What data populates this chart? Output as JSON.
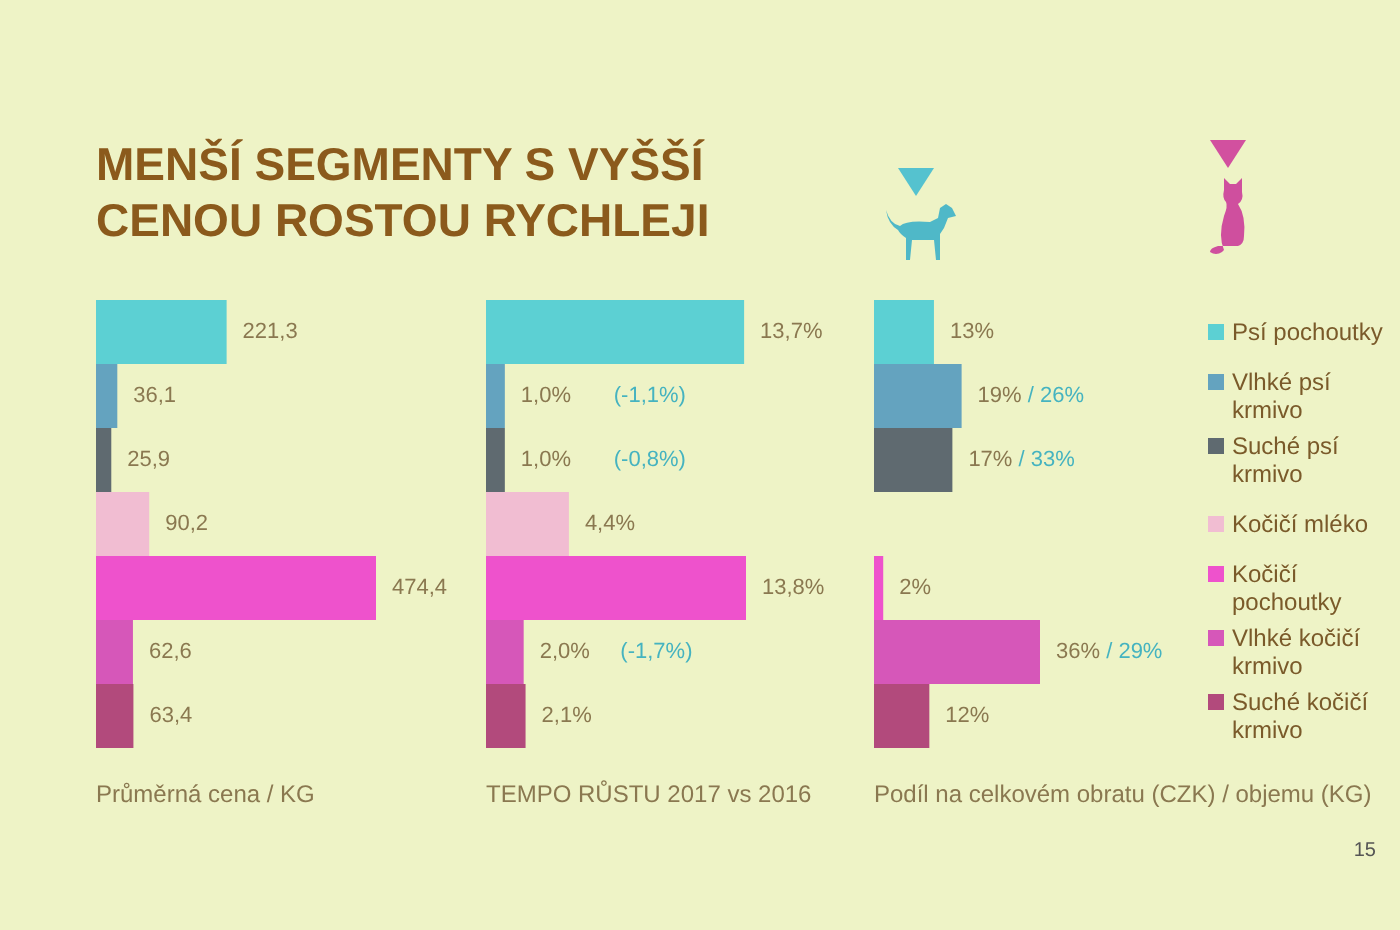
{
  "chart_data": [
    {
      "type": "bar",
      "orientation": "horizontal",
      "title": "MENŠÍ SEGMENTY S VYŠŠÍ CENOU ROSTOU RYCHLEJI",
      "xlabel": "Průměrná cena / KG",
      "categories": [
        null,
        null,
        null,
        null,
        null,
        null,
        null
      ],
      "values": [
        221.3,
        36.1,
        25.9,
        90.2,
        474.4,
        62.6,
        63.4
      ],
      "colors": [
        "#5cd0d3",
        "#64a3bf",
        "#5f6a70",
        "#f1bdd2",
        "#ee52cc",
        "#d657b9",
        "#b24a7c"
      ],
      "value_labels": [
        "221,3",
        "36,1",
        "25,9",
        "90,2",
        "474,4",
        "62,6",
        "63,4"
      ]
    },
    {
      "type": "bar",
      "orientation": "horizontal",
      "xlabel": "TEMPO RŮSTU 2017 vs 2016",
      "categories": [
        null,
        null,
        null,
        null,
        null,
        null,
        null
      ],
      "values": [
        13.7,
        1.0,
        1.0,
        4.4,
        13.8,
        2.0,
        2.1
      ],
      "colors": [
        "#5cd0d3",
        "#64a3bf",
        "#5f6a70",
        "#f1bdd2",
        "#ee52cc",
        "#d657b9",
        "#b24a7c"
      ],
      "value_labels": [
        "13,7%",
        "1,0%       (-1,1%)",
        "1,0%       (-0,8%)",
        "4,4%",
        "13,8%",
        "2,0%     (-1,7%)",
        "2,1%"
      ]
    },
    {
      "type": "bar",
      "orientation": "horizontal",
      "xlabel": "Podíl na celkovém obratu (CZK) / objemu (KG)",
      "categories": [
        "Psí pochoutky",
        "Vlhké psí krmivo",
        "Suché psí krmivo",
        "Kočičí mléko",
        "Kočičí pochoutky",
        "Vlhké kočičí krmivo",
        "Suché kočičí krmivo"
      ],
      "values": [
        13,
        19,
        17,
        null,
        2,
        36,
        12
      ],
      "colors": [
        "#5cd0d3",
        "#64a3bf",
        "#5f6a70",
        "#f1bdd2",
        "#ee52cc",
        "#d657b9",
        "#b24a7c"
      ],
      "value_labels": [
        "13%",
        "19% / 26%",
        "17% / 33%",
        null,
        "2%",
        "36% / 29%",
        "12%"
      ],
      "annotations": [
        "15"
      ]
    }
  ]
}
